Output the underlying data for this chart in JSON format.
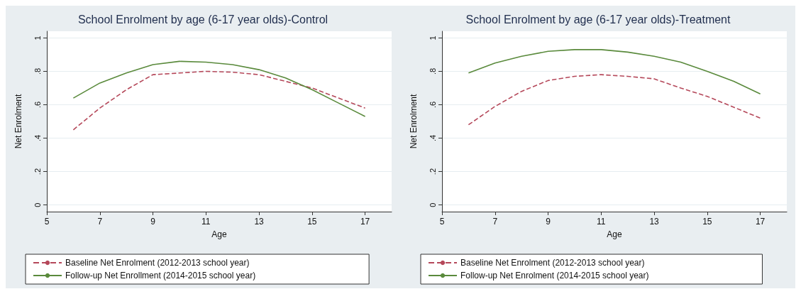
{
  "chart_data": [
    {
      "type": "line",
      "title": "School Enrolment by age (6-17 year olds)-Control",
      "xlabel": "Age",
      "ylabel": "Net Enrolment",
      "x": [
        6,
        7,
        8,
        9,
        10,
        11,
        12,
        13,
        14,
        15,
        16,
        17
      ],
      "xlim": [
        5,
        18
      ],
      "xticks": [
        5,
        7,
        9,
        11,
        13,
        15,
        17
      ],
      "ylim": [
        -0.04,
        1.04
      ],
      "yticks": [
        {
          "value": 0,
          "label": "0"
        },
        {
          "value": 0.2,
          "label": ".2"
        },
        {
          "value": 0.4,
          "label": ".4"
        },
        {
          "value": 0.6,
          "label": ".6"
        },
        {
          "value": 0.8,
          "label": ".8"
        },
        {
          "value": 1,
          "label": "1"
        }
      ],
      "grid": "y",
      "legend": "bottom",
      "marker": "none",
      "series": [
        {
          "name": "Baseline Net Enrolment (2012-2013 school year)",
          "color": "#b5485a",
          "line_style": "dashed",
          "values": [
            0.45,
            0.58,
            0.69,
            0.78,
            0.79,
            0.8,
            0.795,
            0.78,
            0.74,
            0.7,
            0.64,
            0.58
          ]
        },
        {
          "name": "Follow-up Net Enrollment (2014-2015 school year)",
          "color": "#5a8a3c",
          "line_style": "solid",
          "values": [
            0.64,
            0.73,
            0.79,
            0.84,
            0.86,
            0.855,
            0.84,
            0.81,
            0.76,
            0.69,
            0.61,
            0.53
          ]
        }
      ]
    },
    {
      "type": "line",
      "title": "School Enrolment by age (6-17 year olds)-Treatment",
      "xlabel": "Age",
      "ylabel": "Net Enrolment",
      "x": [
        6,
        7,
        8,
        9,
        10,
        11,
        12,
        13,
        14,
        15,
        16,
        17
      ],
      "xlim": [
        5,
        18
      ],
      "xticks": [
        5,
        7,
        9,
        11,
        13,
        15,
        17
      ],
      "ylim": [
        -0.04,
        1.04
      ],
      "yticks": [
        {
          "value": 0,
          "label": "0"
        },
        {
          "value": 0.2,
          "label": ".2"
        },
        {
          "value": 0.4,
          "label": ".4"
        },
        {
          "value": 0.6,
          "label": ".6"
        },
        {
          "value": 0.8,
          "label": ".8"
        },
        {
          "value": 1,
          "label": "1"
        }
      ],
      "grid": "y",
      "legend": "bottom",
      "marker": "none",
      "series": [
        {
          "name": "Baseline Net Enrolment (2012-2013 school year)",
          "color": "#b5485a",
          "line_style": "dashed",
          "values": [
            0.48,
            0.59,
            0.68,
            0.745,
            0.77,
            0.78,
            0.77,
            0.755,
            0.7,
            0.65,
            0.585,
            0.52
          ]
        },
        {
          "name": "Follow-up Net Enrolment (2014-2015 school year)",
          "color": "#5a8a3c",
          "line_style": "solid",
          "values": [
            0.79,
            0.85,
            0.89,
            0.92,
            0.93,
            0.93,
            0.915,
            0.89,
            0.855,
            0.8,
            0.74,
            0.665
          ]
        }
      ]
    }
  ]
}
